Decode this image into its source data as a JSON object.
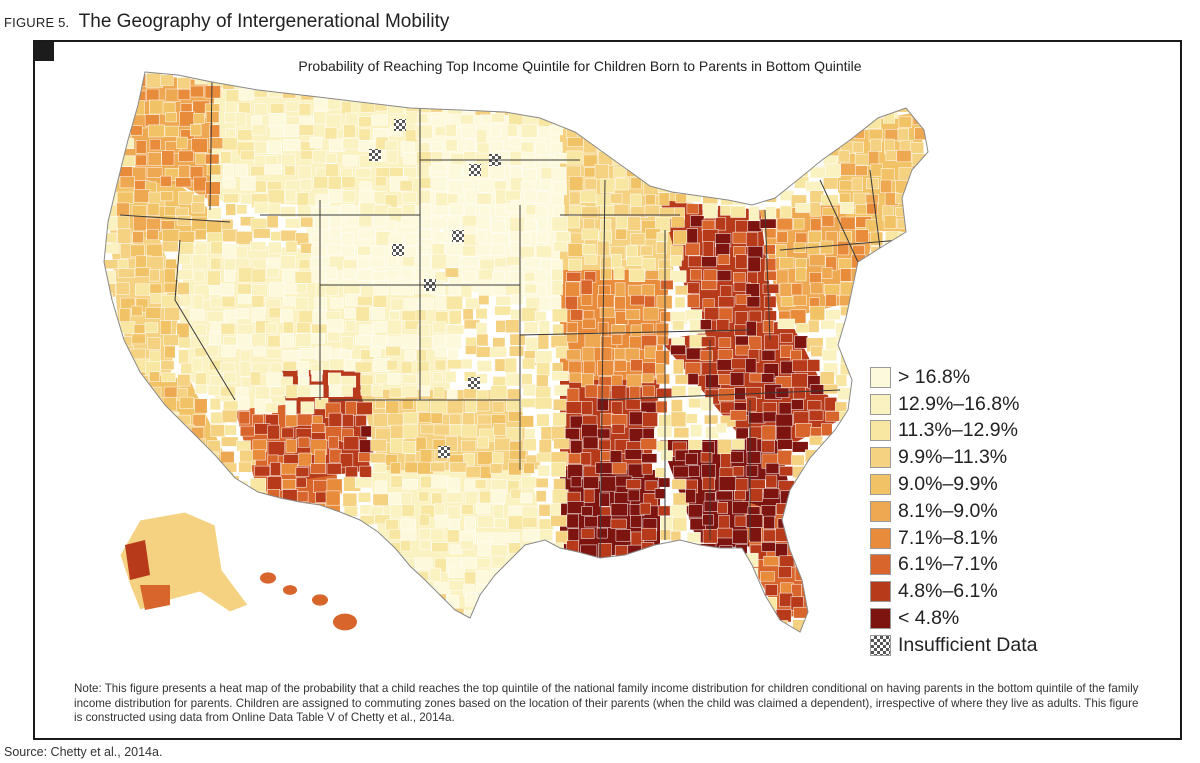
{
  "figure": {
    "number": "FIGURE 5.",
    "title": "The Geography of Intergenerational Mobility"
  },
  "map": {
    "title": "Probability of Reaching Top Income Quintile for Children Born to Parents in Bottom Quintile",
    "subject": "United States commuting zones",
    "palette": {
      "gt16_8": "#fdf9dc",
      "r12_9_16_8": "#fbf2c2",
      "r11_3_12_9": "#f8e7a3",
      "r9_9_11_3": "#f4d281",
      "r9_0_9_9": "#f1c366",
      "r8_1_9_0": "#eea851",
      "r7_1_8_1": "#e88c3c",
      "r6_1_7_1": "#d8652b",
      "r4_8_6_1": "#b73a1b",
      "lt4_8": "#7d1410",
      "insufficient": "#555555",
      "borders": "#3a3a3a"
    }
  },
  "legend": {
    "items": [
      {
        "label": "> 16.8%",
        "color": "#fdf9dc"
      },
      {
        "label": "12.9%–16.8%",
        "color": "#fbf2c2"
      },
      {
        "label": "11.3%–12.9%",
        "color": "#f8e7a3"
      },
      {
        "label": "9.9%–11.3%",
        "color": "#f4d281"
      },
      {
        "label": "9.0%–9.9%",
        "color": "#f1c366"
      },
      {
        "label": "8.1%–9.0%",
        "color": "#eea851"
      },
      {
        "label": "7.1%–8.1%",
        "color": "#e88c3c"
      },
      {
        "label": "6.1%–7.1%",
        "color": "#d8652b"
      },
      {
        "label": "4.8%–6.1%",
        "color": "#b73a1b"
      },
      {
        "label": "< 4.8%",
        "color": "#7d1410"
      },
      {
        "label": "Insufficient Data",
        "color": "hatch"
      }
    ]
  },
  "note": "Note: This figure presents a heat map of the probability that a child reaches the top quintile of the national family income distribution for children conditional on having parents in the bottom quintile of the family income distribution for parents. Children are assigned to commuting zones based on the location of their parents (when the child was claimed a dependent), irrespective of where they live as adults. This figure is constructed using data from Online Data Table V of Chetty et al., 2014a.",
  "source": "Source: Chetty et al., 2014a."
}
